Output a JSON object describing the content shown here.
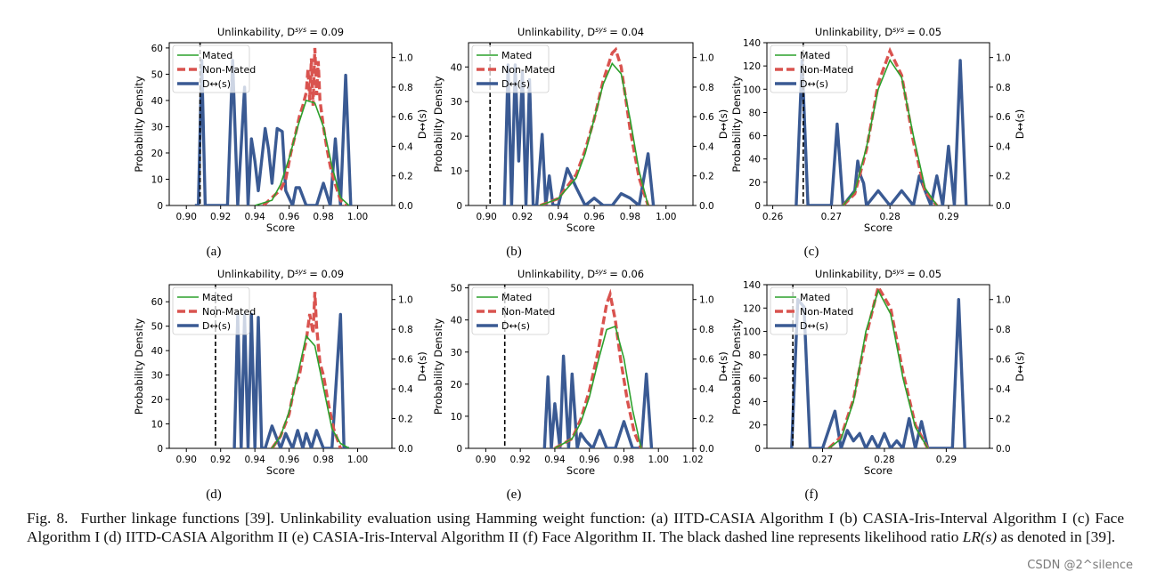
{
  "figure": {
    "panels": [
      {
        "label": "(a)",
        "title": "Unlinkability, D",
        "title_sup": "sys",
        "title_value": "= 0.09",
        "id": "a"
      },
      {
        "label": "(b)",
        "title": "Unlinkability, D",
        "title_sup": "sys",
        "title_value": "= 0.04",
        "id": "b"
      },
      {
        "label": "(c)",
        "title": "Unlinkability, D",
        "title_sup": "sys",
        "title_value": "= 0.05",
        "id": "c"
      },
      {
        "label": "(d)",
        "title": "Unlinkability, D",
        "title_sup": "sys",
        "title_value": "= 0.09",
        "id": "d"
      },
      {
        "label": "(e)",
        "title": "Unlinkability, D",
        "title_sup": "sys",
        "title_value": "= 0.06",
        "id": "e"
      },
      {
        "label": "(f)",
        "title": "Unlinkability, D",
        "title_sup": "sys",
        "title_value": "= 0.05",
        "id": "f"
      }
    ]
  },
  "caption": {
    "fig_label": "Fig. 8.",
    "text_before": "Further linkage functions [39]. Unlinkability evaluation using Hamming weight function: (a) IITD-CASIA Algorithm I (b)  CASIA-Iris-Interval Algorithm I (c) Face Algorithm I (d) IITD-CASIA Algorithm II (e) CASIA-Iris-Interval Algorithm II (f) Face Algorithm II. The black dashed line represents likelihood ratio ",
    "math": "LR(s)",
    "text_after": " as denoted in [39]."
  },
  "watermark": "CSDN @2^silence",
  "colors": {
    "mated": "#2ca02c",
    "non_mated": "#d9534f",
    "d": "#3a5a93",
    "lr": "#000000",
    "axis": "#000000"
  },
  "chart_data": [
    {
      "type": "line",
      "id": "a",
      "title": "Unlinkability, D↔^sys = 0.09",
      "xlabel": "Score",
      "ylabel": "Probability Density",
      "y2label": "D↔(s)",
      "xlim": [
        0.89,
        1.02
      ],
      "ylim": [
        0,
        62
      ],
      "y2lim": [
        0,
        1.1
      ],
      "xticks": [
        0.9,
        0.92,
        0.94,
        0.96,
        0.98,
        1.0
      ],
      "xtick_labels": [
        "0.90",
        "0.92",
        "0.94",
        "0.96",
        "0.98",
        "1.00"
      ],
      "yticks": [
        0,
        10,
        20,
        30,
        40,
        50,
        60
      ],
      "y2ticks": [
        0,
        0.2,
        0.4,
        0.6,
        0.8,
        1.0
      ],
      "legend": [
        "Mated",
        "Non-Mated",
        "D↔(s)"
      ],
      "legend_position": "top-left",
      "lr_x": 0.908,
      "series": [
        {
          "name": "Mated",
          "axis": "left",
          "x": [
            0.94,
            0.95,
            0.955,
            0.96,
            0.965,
            0.97,
            0.975,
            0.98,
            0.985,
            0.99,
            0.995
          ],
          "y": [
            0,
            2,
            8,
            18,
            30,
            40,
            39,
            30,
            15,
            3,
            0
          ]
        },
        {
          "name": "Non-Mated",
          "axis": "left",
          "x": [
            0.945,
            0.95,
            0.955,
            0.958,
            0.961,
            0.964,
            0.966,
            0.968,
            0.97,
            0.971,
            0.972,
            0.973,
            0.974,
            0.975,
            0.976,
            0.977,
            0.978,
            0.979,
            0.98,
            0.982,
            0.984,
            0.986,
            0.988,
            0.99,
            0.993
          ],
          "y": [
            0,
            3,
            6,
            10,
            20,
            28,
            34,
            38,
            43,
            52,
            40,
            56,
            38,
            60,
            42,
            55,
            40,
            35,
            30,
            22,
            15,
            10,
            6,
            2,
            0
          ]
        },
        {
          "name": "D↔(s)",
          "axis": "right",
          "x": [
            0.905,
            0.907,
            0.909,
            0.911,
            0.924,
            0.927,
            0.93,
            0.934,
            0.936,
            0.938,
            0.94,
            0.942,
            0.946,
            0.948,
            0.95,
            0.953,
            0.956,
            0.958,
            0.962,
            0.964,
            0.966,
            0.97,
            0.976,
            0.98,
            0.984,
            0.987,
            0.99,
            0.993,
            0.996
          ],
          "y": [
            0,
            0,
            0.98,
            0,
            0,
            0.98,
            0,
            0.8,
            0,
            0.45,
            0.3,
            0.1,
            0.52,
            0.38,
            0.15,
            0.52,
            0.5,
            0.1,
            0.0,
            0.12,
            0.12,
            0.0,
            0.0,
            0.15,
            0.0,
            0.45,
            0.0,
            0.88,
            0.0
          ]
        }
      ]
    },
    {
      "type": "line",
      "id": "b",
      "title": "Unlinkability, D↔^sys = 0.04",
      "xlabel": "Score",
      "ylabel": "Probability Density",
      "y2label": "D↔(s)",
      "xlim": [
        0.89,
        1.015
      ],
      "ylim": [
        0,
        47
      ],
      "y2lim": [
        0,
        1.1
      ],
      "xticks": [
        0.9,
        0.92,
        0.94,
        0.96,
        0.98,
        1.0
      ],
      "xtick_labels": [
        "0.90",
        "0.92",
        "0.94",
        "0.96",
        "0.98",
        "1.00"
      ],
      "yticks": [
        0,
        10,
        20,
        30,
        40
      ],
      "y2ticks": [
        0,
        0.2,
        0.4,
        0.6,
        0.8,
        1.0
      ],
      "legend": [
        "Mated",
        "Non-Mated",
        "D↔(s)"
      ],
      "legend_position": "top-left",
      "lr_x": 0.902,
      "series": [
        {
          "name": "Mated",
          "axis": "left",
          "x": [
            0.93,
            0.94,
            0.95,
            0.955,
            0.96,
            0.965,
            0.97,
            0.975,
            0.98,
            0.985,
            0.99
          ],
          "y": [
            0,
            2,
            8,
            15,
            25,
            35,
            41,
            38,
            25,
            10,
            0
          ]
        },
        {
          "name": "Non-Mated",
          "axis": "left",
          "x": [
            0.93,
            0.94,
            0.95,
            0.955,
            0.96,
            0.965,
            0.97,
            0.972,
            0.975,
            0.98,
            0.985,
            0.99
          ],
          "y": [
            0,
            2,
            9,
            16,
            25,
            36,
            44,
            45,
            40,
            22,
            8,
            0
          ]
        },
        {
          "name": "D↔(s)",
          "axis": "right",
          "x": [
            0.91,
            0.912,
            0.914,
            0.916,
            0.918,
            0.92,
            0.922,
            0.924,
            0.926,
            0.928,
            0.931,
            0.933,
            0.935,
            0.937,
            0.94,
            0.945,
            0.95,
            0.955,
            0.96,
            0.965,
            0.97,
            0.975,
            0.98,
            0.985,
            0.99,
            0.993
          ],
          "y": [
            0,
            0.95,
            0,
            0.95,
            0.3,
            0.9,
            0.0,
            0.85,
            0.0,
            0.0,
            0.48,
            0.0,
            0.2,
            0.0,
            0.0,
            0.25,
            0.12,
            0.0,
            0.05,
            0.0,
            0.0,
            0.08,
            0.05,
            0.0,
            0.35,
            0.0
          ]
        }
      ]
    },
    {
      "type": "line",
      "id": "c",
      "title": "Unlinkability, D↔^sys = 0.05",
      "xlabel": "Score",
      "ylabel": "Probability Density",
      "y2label": "D↔(s)",
      "xlim": [
        0.259,
        0.297
      ],
      "ylim": [
        0,
        140
      ],
      "y2lim": [
        0,
        1.1
      ],
      "xticks": [
        0.26,
        0.27,
        0.28,
        0.29
      ],
      "xtick_labels": [
        "0.26",
        "0.27",
        "0.28",
        "0.29"
      ],
      "yticks": [
        0,
        20,
        40,
        60,
        80,
        100,
        120,
        140
      ],
      "y2ticks": [
        0,
        0.2,
        0.4,
        0.6,
        0.8,
        1.0
      ],
      "legend": [
        "Mated",
        "Non-Mated",
        "D↔(s)"
      ],
      "legend_position": "top-left",
      "lr_x": 0.2652,
      "series": [
        {
          "name": "Mated",
          "axis": "left",
          "x": [
            0.272,
            0.274,
            0.276,
            0.278,
            0.28,
            0.282,
            0.284,
            0.286,
            0.288
          ],
          "y": [
            0,
            12,
            50,
            100,
            125,
            110,
            60,
            15,
            0
          ]
        },
        {
          "name": "Non-Mated",
          "axis": "left",
          "x": [
            0.272,
            0.274,
            0.276,
            0.278,
            0.28,
            0.282,
            0.284,
            0.286,
            0.288
          ],
          "y": [
            0,
            10,
            48,
            105,
            133,
            112,
            55,
            12,
            0
          ]
        },
        {
          "name": "D↔(s)",
          "axis": "right",
          "x": [
            0.264,
            0.265,
            0.266,
            0.267,
            0.27,
            0.271,
            0.272,
            0.274,
            0.2745,
            0.275,
            0.2755,
            0.276,
            0.278,
            0.28,
            0.282,
            0.284,
            0.285,
            0.286,
            0.287,
            0.288,
            0.289,
            0.29,
            0.291,
            0.292,
            0.293
          ],
          "y": [
            0,
            0.98,
            0.0,
            0.0,
            0.0,
            0.55,
            0.0,
            0.1,
            0.3,
            0.2,
            0.15,
            0.0,
            0.1,
            0.0,
            0.1,
            0.0,
            0.2,
            0.1,
            0.0,
            0.2,
            0.0,
            0.4,
            0.0,
            0.98,
            0.0
          ]
        }
      ]
    },
    {
      "type": "line",
      "id": "d",
      "title": "Unlinkability, D↔^sys = 0.09",
      "xlabel": "Score",
      "ylabel": "Probability Density",
      "y2label": "D↔(s)",
      "xlim": [
        0.89,
        1.02
      ],
      "ylim": [
        0,
        67
      ],
      "y2lim": [
        0,
        1.1
      ],
      "xticks": [
        0.9,
        0.92,
        0.94,
        0.96,
        0.98,
        1.0
      ],
      "xtick_labels": [
        "0.90",
        "0.92",
        "0.94",
        "0.96",
        "0.98",
        "1.00"
      ],
      "yticks": [
        0,
        10,
        20,
        30,
        40,
        50,
        60
      ],
      "y2ticks": [
        0,
        0.2,
        0.4,
        0.6,
        0.8,
        1.0
      ],
      "legend": [
        "Mated",
        "Non-Mated",
        "D↔(s)"
      ],
      "legend_position": "top-left",
      "lr_x": 0.917,
      "series": [
        {
          "name": "Mated",
          "axis": "left",
          "x": [
            0.95,
            0.955,
            0.96,
            0.965,
            0.97,
            0.975,
            0.98,
            0.985,
            0.99,
            0.995
          ],
          "y": [
            0,
            5,
            15,
            30,
            46,
            42,
            25,
            8,
            2,
            0
          ]
        },
        {
          "name": "Non-Mated",
          "axis": "left",
          "x": [
            0.95,
            0.955,
            0.96,
            0.963,
            0.966,
            0.968,
            0.97,
            0.972,
            0.974,
            0.975,
            0.976,
            0.978,
            0.98,
            0.983,
            0.986,
            0.99
          ],
          "y": [
            0,
            5,
            14,
            25,
            30,
            38,
            44,
            55,
            47,
            64,
            50,
            35,
            30,
            18,
            8,
            0
          ]
        },
        {
          "name": "D↔(s)",
          "axis": "right",
          "x": [
            0.928,
            0.93,
            0.932,
            0.934,
            0.936,
            0.938,
            0.94,
            0.942,
            0.944,
            0.946,
            0.95,
            0.955,
            0.958,
            0.962,
            0.965,
            0.968,
            0.97,
            0.973,
            0.976,
            0.98,
            0.985,
            0.99,
            0.992,
            0.995
          ],
          "y": [
            0,
            0.9,
            0.0,
            0.9,
            0.0,
            0.9,
            0.0,
            0.88,
            0.0,
            0.0,
            0.15,
            0.0,
            0.1,
            0.0,
            0.12,
            0.0,
            0.1,
            0.0,
            0.12,
            0.0,
            0.0,
            0.9,
            0.0,
            0.0
          ]
        }
      ]
    },
    {
      "type": "line",
      "id": "e",
      "title": "Unlinkability, D↔^sys = 0.06",
      "xlabel": "Score",
      "ylabel": "Probability Density",
      "y2label": "D↔(s)",
      "xlim": [
        0.89,
        1.02
      ],
      "ylim": [
        0,
        51
      ],
      "y2lim": [
        0,
        1.1
      ],
      "xticks": [
        0.9,
        0.92,
        0.94,
        0.96,
        0.98,
        1.0,
        1.02
      ],
      "xtick_labels": [
        "0.90",
        "0.92",
        "0.94",
        "0.96",
        "0.98",
        "1.00",
        "1.02"
      ],
      "yticks": [
        0,
        10,
        20,
        30,
        40,
        50
      ],
      "y2ticks": [
        0,
        0.2,
        0.4,
        0.6,
        0.8,
        1.0
      ],
      "legend": [
        "Mated",
        "Non-Mated",
        "D↔(s)"
      ],
      "legend_position": "top-left",
      "lr_x": 0.911,
      "series": [
        {
          "name": "Mated",
          "axis": "left",
          "x": [
            0.94,
            0.95,
            0.955,
            0.96,
            0.965,
            0.97,
            0.975,
            0.98,
            0.985,
            0.99
          ],
          "y": [
            0,
            3,
            8,
            16,
            27,
            37,
            38,
            28,
            12,
            0
          ]
        },
        {
          "name": "Non-Mated",
          "axis": "left",
          "x": [
            0.94,
            0.95,
            0.955,
            0.96,
            0.965,
            0.97,
            0.972,
            0.975,
            0.978,
            0.982,
            0.986,
            0.99
          ],
          "y": [
            0,
            3,
            9,
            18,
            30,
            45,
            48,
            40,
            28,
            15,
            5,
            0
          ]
        },
        {
          "name": "D↔(s)",
          "axis": "right",
          "x": [
            0.934,
            0.936,
            0.938,
            0.94,
            0.943,
            0.945,
            0.948,
            0.95,
            0.953,
            0.955,
            0.958,
            0.962,
            0.966,
            0.97,
            0.975,
            0.98,
            0.985,
            0.99,
            0.993,
            0.996
          ],
          "y": [
            0,
            0.48,
            0.0,
            0.3,
            0.0,
            0.62,
            0.0,
            0.5,
            0.0,
            0.1,
            0.05,
            0.0,
            0.12,
            0.0,
            0.0,
            0.18,
            0.0,
            0.0,
            0.5,
            0.0
          ]
        }
      ]
    },
    {
      "type": "line",
      "id": "f",
      "title": "Unlinkability, D↔^sys = 0.05",
      "xlabel": "Score",
      "ylabel": "Probability Density",
      "y2label": "D↔(s)",
      "xlim": [
        0.261,
        0.297
      ],
      "ylim": [
        0,
        140
      ],
      "y2lim": [
        0,
        1.1
      ],
      "xticks": [
        0.27,
        0.28,
        0.29
      ],
      "xtick_labels": [
        "0.27",
        "0.28",
        "0.29"
      ],
      "yticks": [
        0,
        20,
        40,
        60,
        80,
        100,
        120,
        140
      ],
      "y2ticks": [
        0,
        0.2,
        0.4,
        0.6,
        0.8,
        1.0
      ],
      "legend": [
        "Mated",
        "Non-Mated",
        "D↔(s)"
      ],
      "legend_position": "top-left",
      "lr_x": 0.2652,
      "series": [
        {
          "name": "Mated",
          "axis": "left",
          "x": [
            0.271,
            0.273,
            0.275,
            0.277,
            0.279,
            0.281,
            0.283,
            0.285,
            0.287
          ],
          "y": [
            0,
            8,
            40,
            100,
            135,
            115,
            60,
            18,
            0
          ]
        },
        {
          "name": "Non-Mated",
          "axis": "left",
          "x": [
            0.271,
            0.273,
            0.275,
            0.277,
            0.279,
            0.281,
            0.283,
            0.285,
            0.287
          ],
          "y": [
            0,
            10,
            42,
            95,
            138,
            120,
            65,
            20,
            0
          ]
        },
        {
          "name": "D↔(s)",
          "axis": "right",
          "x": [
            0.265,
            0.266,
            0.267,
            0.268,
            0.27,
            0.272,
            0.273,
            0.274,
            0.275,
            0.276,
            0.277,
            0.278,
            0.279,
            0.28,
            0.281,
            0.282,
            0.283,
            0.284,
            0.285,
            0.286,
            0.287,
            0.288,
            0.291,
            0.292,
            0.293
          ],
          "y": [
            0,
            1.0,
            0.95,
            0.0,
            0.0,
            0.25,
            0.0,
            0.12,
            0.05,
            0.1,
            0.0,
            0.08,
            0.0,
            0.1,
            0.0,
            0.05,
            0.0,
            0.2,
            0.0,
            0.18,
            0.0,
            0.0,
            0.0,
            1.0,
            0.0
          ]
        }
      ]
    }
  ]
}
